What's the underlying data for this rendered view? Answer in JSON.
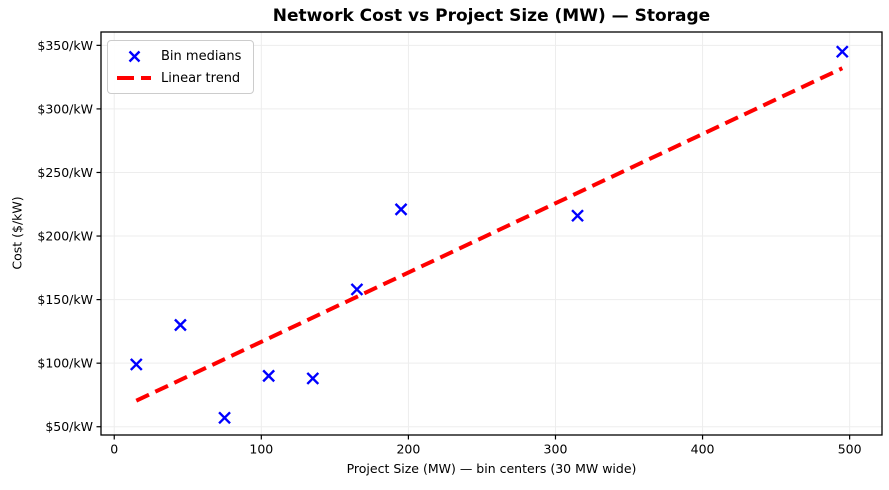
{
  "chart_data": {
    "type": "scatter",
    "title": "Network Cost vs Project Size (MW) — Storage",
    "xlabel": "Project Size (MW) — bin centers (30 MW wide)",
    "ylabel": "Cost ($/kW)",
    "xlim": [
      -9,
      522
    ],
    "ylim": [
      43.5,
      360.5
    ],
    "grid": true,
    "xticks": {
      "values": [
        0,
        100,
        200,
        300,
        400,
        500
      ],
      "labels": [
        "0",
        "100",
        "200",
        "300",
        "400",
        "500"
      ]
    },
    "yticks": {
      "values": [
        50,
        100,
        150,
        200,
        250,
        300,
        350
      ],
      "labels": [
        "$50/kW",
        "$100/kW",
        "$150/kW",
        "$200/kW",
        "$250/kW",
        "$300/kW",
        "$350/kW"
      ]
    },
    "series": [
      {
        "name": "Bin medians",
        "type": "scatter",
        "marker": "x",
        "color": "#0000ff",
        "x": [
          15,
          45,
          75,
          105,
          135,
          165,
          195,
          315,
          495
        ],
        "y": [
          99,
          130,
          57,
          90,
          88,
          158,
          221,
          216,
          345
        ]
      },
      {
        "name": "Linear trend",
        "type": "line",
        "style": "dashed",
        "color": "#ff0000",
        "slope": 0.545,
        "intercept": 62.3,
        "x": [
          15,
          495
        ],
        "y": [
          70.5,
          332
        ]
      }
    ],
    "legend": {
      "position": "upper-left",
      "items": [
        {
          "label": "Bin medians",
          "marker": "x",
          "color": "#0000ff"
        },
        {
          "label": "Linear trend",
          "marker": "dashed-line",
          "color": "#ff0000"
        }
      ]
    },
    "colors": {
      "marker": "#0000ff",
      "trend": "#ff0000",
      "grid": "#ededed",
      "frame": "#000000",
      "text": "#000000",
      "background": "#ffffff",
      "legend_border": "#cccccc"
    }
  }
}
